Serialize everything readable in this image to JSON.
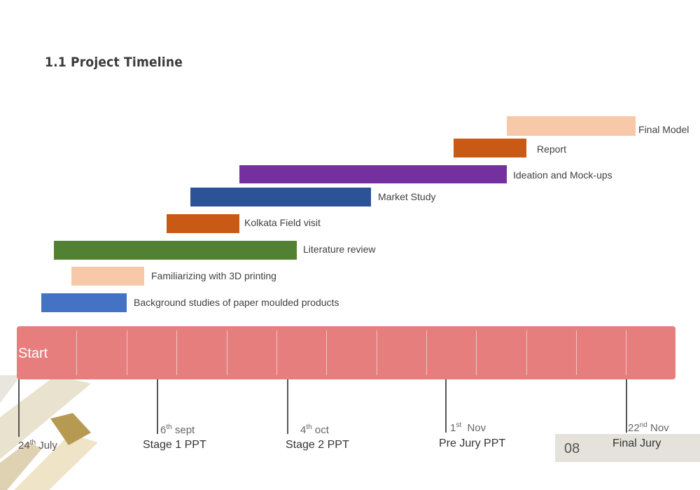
{
  "title": "1.1  Project Timeline",
  "timeline": {
    "start_label": "Start"
  },
  "tasks": [
    {
      "name": "Final Model",
      "color": "#f8c9a8"
    },
    {
      "name": "Report",
      "color": "#c85a16"
    },
    {
      "name": "Ideation and Mock-ups",
      "color": "#7530a0"
    },
    {
      "name": "Market Study",
      "color": "#2c5298"
    },
    {
      "name": "Kolkata Field visit",
      "color": "#c85a16"
    },
    {
      "name": "Literature review",
      "color": "#528133"
    },
    {
      "name": "Familiarizing with 3D printing",
      "color": "#f8c9a8"
    },
    {
      "name": "Background studies of paper moulded products",
      "color": "#4472c4"
    }
  ],
  "milestones": [
    {
      "day": "24",
      "suffix": "th",
      "month": "July",
      "name": ""
    },
    {
      "day": "6",
      "suffix": "th",
      "month": "sept",
      "name": "Stage 1 PPT"
    },
    {
      "day": "4",
      "suffix": "th",
      "month": "oct",
      "name": "Stage 2 PPT"
    },
    {
      "day": "1",
      "suffix": "st",
      "month": "Nov",
      "name": "Pre Jury PPT"
    },
    {
      "day": "22",
      "suffix": "nd",
      "month": "Nov",
      "name": "Final Jury"
    }
  ],
  "page_number": "08",
  "colors": {
    "timeline_bar": "#e57e7c"
  }
}
